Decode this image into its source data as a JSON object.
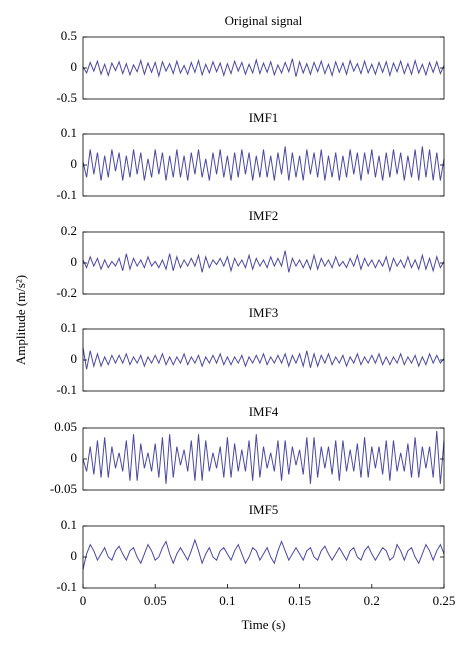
{
  "ylabel": "Amplitude (m/s²)",
  "chart_data": [
    {
      "type": "line",
      "title": "Original signal",
      "color": "#4b48a0",
      "xlim": [
        0,
        0.25
      ],
      "ylim": [
        -0.5,
        0.5
      ],
      "yticks": [
        -0.5,
        0,
        0.5
      ],
      "x": [
        0,
        0.0025,
        0.005,
        0.0075,
        0.01,
        0.0125,
        0.015,
        0.0175,
        0.02,
        0.0225,
        0.025,
        0.0275,
        0.03,
        0.0325,
        0.035,
        0.0375,
        0.04,
        0.0425,
        0.045,
        0.0475,
        0.05,
        0.0525,
        0.055,
        0.0575,
        0.06,
        0.0625,
        0.065,
        0.0675,
        0.07,
        0.0725,
        0.075,
        0.0775,
        0.08,
        0.0825,
        0.085,
        0.0875,
        0.09,
        0.0925,
        0.095,
        0.0975,
        0.1,
        0.1025,
        0.105,
        0.1075,
        0.11,
        0.1125,
        0.115,
        0.1175,
        0.12,
        0.1225,
        0.125,
        0.1275,
        0.13,
        0.1325,
        0.135,
        0.1375,
        0.14,
        0.1425,
        0.145,
        0.1475,
        0.15,
        0.1525,
        0.155,
        0.1575,
        0.16,
        0.1625,
        0.165,
        0.1675,
        0.17,
        0.1725,
        0.175,
        0.1775,
        0.18,
        0.1825,
        0.185,
        0.1875,
        0.19,
        0.1925,
        0.195,
        0.1975,
        0.2,
        0.2025,
        0.205,
        0.2075,
        0.21,
        0.2125,
        0.215,
        0.2175,
        0.22,
        0.2225,
        0.225,
        0.2275,
        0.23,
        0.2325,
        0.235,
        0.2375,
        0.24,
        0.2425,
        0.245,
        0.2475,
        0.25
      ],
      "values": [
        0.02,
        -0.08,
        0.09,
        -0.05,
        0.11,
        -0.1,
        0.06,
        -0.12,
        0.08,
        -0.04,
        0.1,
        -0.09,
        0.07,
        -0.11,
        0.05,
        -0.06,
        0.12,
        -0.1,
        0.08,
        -0.07,
        0.09,
        -0.13,
        0.1,
        -0.05,
        0.07,
        -0.09,
        0.11,
        -0.08,
        0.04,
        -0.1,
        0.09,
        -0.07,
        0.12,
        -0.11,
        0.06,
        -0.08,
        0.1,
        -0.06,
        0.08,
        -0.12,
        0.07,
        -0.09,
        0.11,
        -0.05,
        0.09,
        -0.1,
        0.06,
        -0.08,
        0.13,
        -0.09,
        0.08,
        -0.07,
        0.1,
        -0.11,
        0.05,
        -0.08,
        0.09,
        -0.06,
        0.15,
        -0.14,
        0.1,
        -0.08,
        0.07,
        -0.1,
        0.09,
        -0.06,
        0.11,
        -0.09,
        0.06,
        -0.12,
        0.1,
        -0.07,
        0.08,
        -0.1,
        0.12,
        -0.05,
        0.07,
        -0.09,
        0.11,
        -0.08,
        0.06,
        -0.1,
        0.09,
        -0.07,
        0.1,
        -0.12,
        0.08,
        -0.06,
        0.11,
        -0.09,
        0.07,
        -0.1,
        0.12,
        -0.08,
        0.06,
        -0.11,
        0.09,
        -0.07,
        0.1,
        -0.09,
        0.04
      ]
    },
    {
      "type": "line",
      "title": "IMF1",
      "color": "#4b48a0",
      "xlim": [
        0,
        0.25
      ],
      "ylim": [
        -0.1,
        0.1
      ],
      "yticks": [
        -0.1,
        0,
        0.1
      ],
      "x": [
        0,
        0.0025,
        0.005,
        0.0075,
        0.01,
        0.0125,
        0.015,
        0.0175,
        0.02,
        0.0225,
        0.025,
        0.0275,
        0.03,
        0.0325,
        0.035,
        0.0375,
        0.04,
        0.0425,
        0.045,
        0.0475,
        0.05,
        0.0525,
        0.055,
        0.0575,
        0.06,
        0.0625,
        0.065,
        0.0675,
        0.07,
        0.0725,
        0.075,
        0.0775,
        0.08,
        0.0825,
        0.085,
        0.0875,
        0.09,
        0.0925,
        0.095,
        0.0975,
        0.1,
        0.1025,
        0.105,
        0.1075,
        0.11,
        0.1125,
        0.115,
        0.1175,
        0.12,
        0.1225,
        0.125,
        0.1275,
        0.13,
        0.1325,
        0.135,
        0.1375,
        0.14,
        0.1425,
        0.145,
        0.1475,
        0.15,
        0.1525,
        0.155,
        0.1575,
        0.16,
        0.1625,
        0.165,
        0.1675,
        0.17,
        0.1725,
        0.175,
        0.1775,
        0.18,
        0.1825,
        0.185,
        0.1875,
        0.19,
        0.1925,
        0.195,
        0.1975,
        0.2,
        0.2025,
        0.205,
        0.2075,
        0.21,
        0.2125,
        0.215,
        0.2175,
        0.22,
        0.2225,
        0.225,
        0.2275,
        0.23,
        0.2325,
        0.235,
        0.2375,
        0.24,
        0.2425,
        0.245,
        0.2475,
        0.25
      ],
      "values": [
        0.01,
        -0.04,
        0.05,
        -0.03,
        0.04,
        -0.05,
        0.03,
        -0.04,
        0.05,
        -0.02,
        0.04,
        -0.05,
        0.03,
        -0.04,
        0.05,
        -0.03,
        0.04,
        -0.05,
        0.02,
        -0.04,
        0.05,
        -0.03,
        0.04,
        -0.05,
        0.03,
        -0.04,
        0.05,
        -0.04,
        0.03,
        -0.05,
        0.04,
        -0.03,
        0.05,
        -0.04,
        0.02,
        -0.05,
        0.04,
        -0.03,
        0.05,
        -0.04,
        0.03,
        -0.05,
        0.04,
        -0.04,
        0.05,
        -0.03,
        0.04,
        -0.05,
        0.03,
        -0.04,
        0.05,
        -0.04,
        0.03,
        -0.05,
        0.04,
        -0.03,
        0.06,
        -0.05,
        0.04,
        -0.04,
        0.03,
        -0.05,
        0.05,
        -0.03,
        0.04,
        -0.04,
        0.05,
        -0.05,
        0.03,
        -0.04,
        0.04,
        -0.05,
        0.03,
        -0.04,
        0.05,
        -0.03,
        0.04,
        -0.05,
        0.04,
        -0.03,
        0.05,
        -0.04,
        0.03,
        -0.05,
        0.04,
        -0.04,
        0.05,
        -0.03,
        0.04,
        -0.05,
        0.03,
        -0.04,
        0.05,
        -0.05,
        0.06,
        -0.04,
        0.05,
        -0.05,
        0.04,
        -0.05,
        0.02
      ]
    },
    {
      "type": "line",
      "title": "IMF2",
      "color": "#4b48a0",
      "xlim": [
        0,
        0.25
      ],
      "ylim": [
        -0.2,
        0.2
      ],
      "yticks": [
        -0.2,
        0,
        0.2
      ],
      "x": [
        0,
        0.0025,
        0.005,
        0.0075,
        0.01,
        0.0125,
        0.015,
        0.0175,
        0.02,
        0.0225,
        0.025,
        0.0275,
        0.03,
        0.0325,
        0.035,
        0.0375,
        0.04,
        0.0425,
        0.045,
        0.0475,
        0.05,
        0.0525,
        0.055,
        0.0575,
        0.06,
        0.0625,
        0.065,
        0.0675,
        0.07,
        0.0725,
        0.075,
        0.0775,
        0.08,
        0.0825,
        0.085,
        0.0875,
        0.09,
        0.0925,
        0.095,
        0.0975,
        0.1,
        0.1025,
        0.105,
        0.1075,
        0.11,
        0.1125,
        0.115,
        0.1175,
        0.12,
        0.1225,
        0.125,
        0.1275,
        0.13,
        0.1325,
        0.135,
        0.1375,
        0.14,
        0.1425,
        0.145,
        0.1475,
        0.15,
        0.1525,
        0.155,
        0.1575,
        0.16,
        0.1625,
        0.165,
        0.1675,
        0.17,
        0.1725,
        0.175,
        0.1775,
        0.18,
        0.1825,
        0.185,
        0.1875,
        0.19,
        0.1925,
        0.195,
        0.1975,
        0.2,
        0.2025,
        0.205,
        0.2075,
        0.21,
        0.2125,
        0.215,
        0.2175,
        0.22,
        0.2225,
        0.225,
        0.2275,
        0.23,
        0.2325,
        0.235,
        0.2375,
        0.24,
        0.2425,
        0.245,
        0.2475,
        0.25
      ],
      "values": [
        0.02,
        -0.03,
        0.04,
        -0.02,
        0.03,
        -0.04,
        0.02,
        -0.03,
        0.01,
        -0.02,
        0.03,
        -0.05,
        0.06,
        -0.04,
        0.03,
        -0.02,
        0.02,
        -0.03,
        0.04,
        -0.02,
        0.01,
        -0.03,
        0.02,
        -0.04,
        0.06,
        -0.05,
        0.04,
        -0.03,
        0.02,
        -0.02,
        0.03,
        -0.02,
        0.05,
        -0.06,
        0.04,
        -0.03,
        0.02,
        -0.01,
        0.03,
        -0.02,
        0.04,
        -0.05,
        0.03,
        -0.02,
        0.02,
        -0.03,
        0.05,
        -0.04,
        0.03,
        -0.02,
        0.02,
        -0.03,
        0.04,
        -0.02,
        0.03,
        -0.02,
        0.08,
        -0.06,
        0.03,
        -0.02,
        0.02,
        -0.03,
        0.02,
        -0.04,
        0.05,
        -0.04,
        0.03,
        -0.02,
        0.02,
        -0.03,
        0.04,
        -0.02,
        0.01,
        -0.03,
        0.03,
        -0.02,
        0.05,
        -0.04,
        0.03,
        -0.02,
        0.02,
        -0.03,
        0.02,
        -0.02,
        0.04,
        -0.05,
        0.03,
        -0.02,
        0.02,
        -0.03,
        0.04,
        -0.03,
        0.02,
        -0.04,
        0.05,
        -0.04,
        0.03,
        -0.05,
        0.04,
        -0.03,
        0.01
      ]
    },
    {
      "type": "line",
      "title": "IMF3",
      "color": "#4b48a0",
      "xlim": [
        0,
        0.25
      ],
      "ylim": [
        -0.1,
        0.1
      ],
      "yticks": [
        -0.1,
        0,
        0.1
      ],
      "x": [
        0,
        0.0025,
        0.005,
        0.0075,
        0.01,
        0.0125,
        0.015,
        0.0175,
        0.02,
        0.0225,
        0.025,
        0.0275,
        0.03,
        0.0325,
        0.035,
        0.0375,
        0.04,
        0.0425,
        0.045,
        0.0475,
        0.05,
        0.0525,
        0.055,
        0.0575,
        0.06,
        0.0625,
        0.065,
        0.0675,
        0.07,
        0.0725,
        0.075,
        0.0775,
        0.08,
        0.0825,
        0.085,
        0.0875,
        0.09,
        0.0925,
        0.095,
        0.0975,
        0.1,
        0.1025,
        0.105,
        0.1075,
        0.11,
        0.1125,
        0.115,
        0.1175,
        0.12,
        0.1225,
        0.125,
        0.1275,
        0.13,
        0.1325,
        0.135,
        0.1375,
        0.14,
        0.1425,
        0.145,
        0.1475,
        0.15,
        0.1525,
        0.155,
        0.1575,
        0.16,
        0.1625,
        0.165,
        0.1675,
        0.17,
        0.1725,
        0.175,
        0.1775,
        0.18,
        0.1825,
        0.185,
        0.1875,
        0.19,
        0.1925,
        0.195,
        0.1975,
        0.2,
        0.2025,
        0.205,
        0.2075,
        0.21,
        0.2125,
        0.215,
        0.2175,
        0.22,
        0.2225,
        0.225,
        0.2275,
        0.23,
        0.2325,
        0.235,
        0.2375,
        0.24,
        0.2425,
        0.245,
        0.2475,
        0.25
      ],
      "values": [
        0.04,
        -0.03,
        0.03,
        -0.02,
        0.02,
        -0.02,
        0.01,
        -0.015,
        0.015,
        -0.01,
        0.015,
        -0.01,
        0.02,
        -0.015,
        0.01,
        -0.01,
        0.015,
        -0.02,
        0.01,
        -0.01,
        0.015,
        -0.01,
        0.02,
        -0.015,
        0.01,
        -0.015,
        0.01,
        -0.01,
        0.02,
        -0.015,
        0.01,
        -0.01,
        0.015,
        -0.02,
        0.01,
        -0.01,
        0.015,
        -0.01,
        0.02,
        -0.015,
        0.01,
        -0.015,
        0.01,
        -0.01,
        0.015,
        -0.02,
        0.01,
        -0.01,
        0.015,
        -0.01,
        0.02,
        -0.015,
        0.01,
        -0.01,
        0.015,
        -0.01,
        0.02,
        -0.02,
        0.015,
        -0.01,
        0.02,
        -0.02,
        0.03,
        -0.025,
        0.02,
        -0.02,
        0.015,
        -0.01,
        0.02,
        -0.015,
        0.01,
        -0.01,
        0.015,
        -0.02,
        0.01,
        -0.01,
        0.02,
        -0.015,
        0.01,
        -0.01,
        0.015,
        -0.01,
        0.02,
        -0.015,
        0.01,
        -0.015,
        0.01,
        -0.01,
        0.02,
        -0.015,
        0.01,
        -0.01,
        0.015,
        -0.02,
        0.01,
        -0.015,
        0.02,
        -0.01,
        0.015,
        -0.01,
        0.005
      ]
    },
    {
      "type": "line",
      "title": "IMF4",
      "color": "#4b48a0",
      "xlim": [
        0,
        0.25
      ],
      "ylim": [
        -0.05,
        0.05
      ],
      "yticks": [
        -0.05,
        0,
        0.05
      ],
      "x": [
        0,
        0.0025,
        0.005,
        0.0075,
        0.01,
        0.0125,
        0.015,
        0.0175,
        0.02,
        0.0225,
        0.025,
        0.0275,
        0.03,
        0.0325,
        0.035,
        0.0375,
        0.04,
        0.0425,
        0.045,
        0.0475,
        0.05,
        0.0525,
        0.055,
        0.0575,
        0.06,
        0.0625,
        0.065,
        0.0675,
        0.07,
        0.0725,
        0.075,
        0.0775,
        0.08,
        0.0825,
        0.085,
        0.0875,
        0.09,
        0.0925,
        0.095,
        0.0975,
        0.1,
        0.1025,
        0.105,
        0.1075,
        0.11,
        0.1125,
        0.115,
        0.1175,
        0.12,
        0.1225,
        0.125,
        0.1275,
        0.13,
        0.1325,
        0.135,
        0.1375,
        0.14,
        0.1425,
        0.145,
        0.1475,
        0.15,
        0.1525,
        0.155,
        0.1575,
        0.16,
        0.1625,
        0.165,
        0.1675,
        0.17,
        0.1725,
        0.175,
        0.1775,
        0.18,
        0.1825,
        0.185,
        0.1875,
        0.19,
        0.1925,
        0.195,
        0.1975,
        0.2,
        0.2025,
        0.205,
        0.2075,
        0.21,
        0.2125,
        0.215,
        0.2175,
        0.22,
        0.2225,
        0.225,
        0.2275,
        0.23,
        0.2325,
        0.235,
        0.2375,
        0.24,
        0.2425,
        0.245,
        0.2475,
        0.25
      ],
      "values": [
        0.0,
        -0.02,
        0.02,
        -0.025,
        0.03,
        -0.03,
        0.035,
        -0.03,
        0.02,
        -0.015,
        0.01,
        -0.02,
        0.03,
        -0.035,
        0.04,
        -0.035,
        0.025,
        -0.015,
        0.01,
        -0.02,
        0.025,
        -0.03,
        0.035,
        -0.04,
        0.04,
        -0.03,
        0.02,
        -0.01,
        0.015,
        -0.02,
        0.03,
        -0.035,
        0.04,
        -0.035,
        0.03,
        -0.02,
        0.01,
        -0.015,
        0.02,
        -0.03,
        0.035,
        -0.03,
        0.025,
        -0.02,
        0.015,
        -0.02,
        0.03,
        -0.035,
        0.04,
        -0.03,
        0.02,
        -0.015,
        0.01,
        -0.02,
        0.03,
        -0.035,
        0.03,
        -0.025,
        0.02,
        -0.01,
        0.015,
        -0.025,
        0.035,
        -0.04,
        0.035,
        -0.03,
        0.02,
        -0.015,
        0.02,
        -0.025,
        0.03,
        -0.035,
        0.03,
        -0.02,
        0.015,
        -0.02,
        0.025,
        -0.03,
        0.035,
        -0.03,
        0.02,
        -0.015,
        0.02,
        -0.025,
        0.03,
        -0.035,
        0.03,
        -0.02,
        0.01,
        -0.02,
        0.025,
        -0.03,
        0.035,
        -0.03,
        0.02,
        -0.015,
        0.02,
        -0.03,
        0.045,
        -0.04,
        0.03
      ]
    },
    {
      "type": "line",
      "title": "IMF5",
      "color": "#4b48a0",
      "xlim": [
        0,
        0.25
      ],
      "ylim": [
        -0.1,
        0.1
      ],
      "yticks": [
        -0.1,
        0,
        0.1
      ],
      "xticks": [
        0,
        0.05,
        0.1,
        0.15,
        0.2,
        0.25
      ],
      "xlabel": "Time (s)",
      "x": [
        0,
        0.0025,
        0.005,
        0.0075,
        0.01,
        0.0125,
        0.015,
        0.0175,
        0.02,
        0.0225,
        0.025,
        0.0275,
        0.03,
        0.0325,
        0.035,
        0.0375,
        0.04,
        0.0425,
        0.045,
        0.0475,
        0.05,
        0.0525,
        0.055,
        0.0575,
        0.06,
        0.0625,
        0.065,
        0.0675,
        0.07,
        0.0725,
        0.075,
        0.0775,
        0.08,
        0.0825,
        0.085,
        0.0875,
        0.09,
        0.0925,
        0.095,
        0.0975,
        0.1,
        0.1025,
        0.105,
        0.1075,
        0.11,
        0.1125,
        0.115,
        0.1175,
        0.12,
        0.1225,
        0.125,
        0.1275,
        0.13,
        0.1325,
        0.135,
        0.1375,
        0.14,
        0.1425,
        0.145,
        0.1475,
        0.15,
        0.1525,
        0.155,
        0.1575,
        0.16,
        0.1625,
        0.165,
        0.1675,
        0.17,
        0.1725,
        0.175,
        0.1775,
        0.18,
        0.1825,
        0.185,
        0.1875,
        0.19,
        0.1925,
        0.195,
        0.1975,
        0.2,
        0.2025,
        0.205,
        0.2075,
        0.21,
        0.2125,
        0.215,
        0.2175,
        0.22,
        0.2225,
        0.225,
        0.2275,
        0.23,
        0.2325,
        0.235,
        0.2375,
        0.24,
        0.2425,
        0.245,
        0.2475,
        0.25
      ],
      "values": [
        -0.04,
        0.01,
        0.04,
        0.02,
        -0.01,
        0.01,
        0.03,
        0.0,
        -0.01,
        0.02,
        0.035,
        0.01,
        -0.01,
        0.02,
        0.03,
        0.0,
        -0.02,
        0.01,
        0.04,
        0.02,
        -0.01,
        0.0,
        0.03,
        0.05,
        0.01,
        -0.02,
        0.01,
        0.03,
        0.01,
        -0.01,
        0.02,
        0.055,
        0.02,
        -0.02,
        0.01,
        0.03,
        0.0,
        -0.01,
        0.02,
        0.03,
        0.01,
        -0.01,
        0.02,
        0.04,
        0.01,
        -0.02,
        0.0,
        0.03,
        0.02,
        -0.01,
        0.01,
        0.03,
        0.0,
        -0.02,
        0.02,
        0.05,
        0.02,
        -0.01,
        0.01,
        0.03,
        0.01,
        -0.01,
        0.02,
        0.03,
        0.0,
        -0.01,
        0.02,
        0.035,
        0.01,
        -0.01,
        0.01,
        0.03,
        0.01,
        -0.01,
        0.02,
        0.03,
        0.0,
        -0.01,
        0.02,
        0.035,
        0.01,
        -0.01,
        0.01,
        0.03,
        0.02,
        -0.01,
        0.0,
        0.04,
        0.02,
        -0.01,
        0.02,
        0.03,
        0.0,
        -0.02,
        0.01,
        0.04,
        0.02,
        -0.01,
        0.02,
        0.04,
        0.01
      ]
    }
  ]
}
